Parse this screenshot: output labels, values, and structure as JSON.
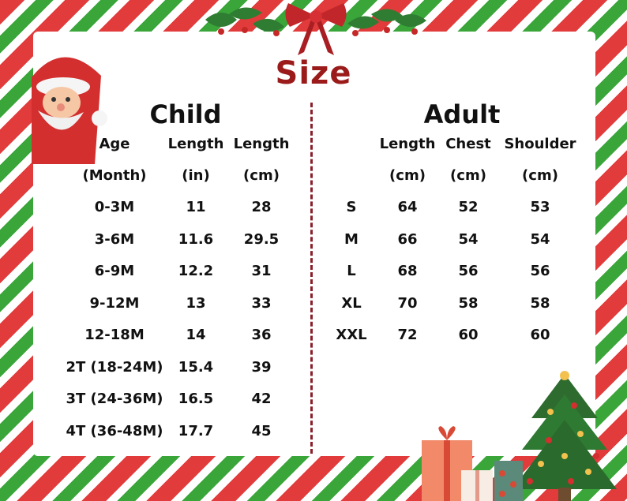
{
  "title": "Size",
  "child": {
    "heading": "Child",
    "headers": [
      [
        "Age",
        "(Month)"
      ],
      [
        "Length",
        "(in)"
      ],
      [
        "Length",
        "(cm)"
      ]
    ],
    "rows": [
      [
        "0-3M",
        "11",
        "28"
      ],
      [
        "3-6M",
        "11.6",
        "29.5"
      ],
      [
        "6-9M",
        "12.2",
        "31"
      ],
      [
        "9-12M",
        "13",
        "33"
      ],
      [
        "12-18M",
        "14",
        "36"
      ],
      [
        "2T (18-24M)",
        "15.4",
        "39"
      ],
      [
        "3T (24-36M)",
        "16.5",
        "42"
      ],
      [
        "4T (36-48M)",
        "17.7",
        "45"
      ]
    ]
  },
  "adult": {
    "heading": "Adult",
    "headers": [
      [
        "",
        ""
      ],
      [
        "Length",
        "(cm)"
      ],
      [
        "Chest",
        "(cm)"
      ],
      [
        "Shoulder",
        "(cm)"
      ]
    ],
    "rows": [
      [
        "S",
        "64",
        "52",
        "53"
      ],
      [
        "M",
        "66",
        "54",
        "54"
      ],
      [
        "L",
        "68",
        "56",
        "56"
      ],
      [
        "XL",
        "70",
        "58",
        "58"
      ],
      [
        "XXL",
        "72",
        "60",
        "60"
      ]
    ]
  },
  "colors": {
    "title": "#9b1b1b",
    "divider": "#8a1f2a",
    "stripe_red": "#e23b3b",
    "stripe_green": "#3aa63a"
  },
  "icons": [
    "santa-icon",
    "bow-icon",
    "holly-icon",
    "christmas-tree-icon",
    "gift-box-icon"
  ]
}
